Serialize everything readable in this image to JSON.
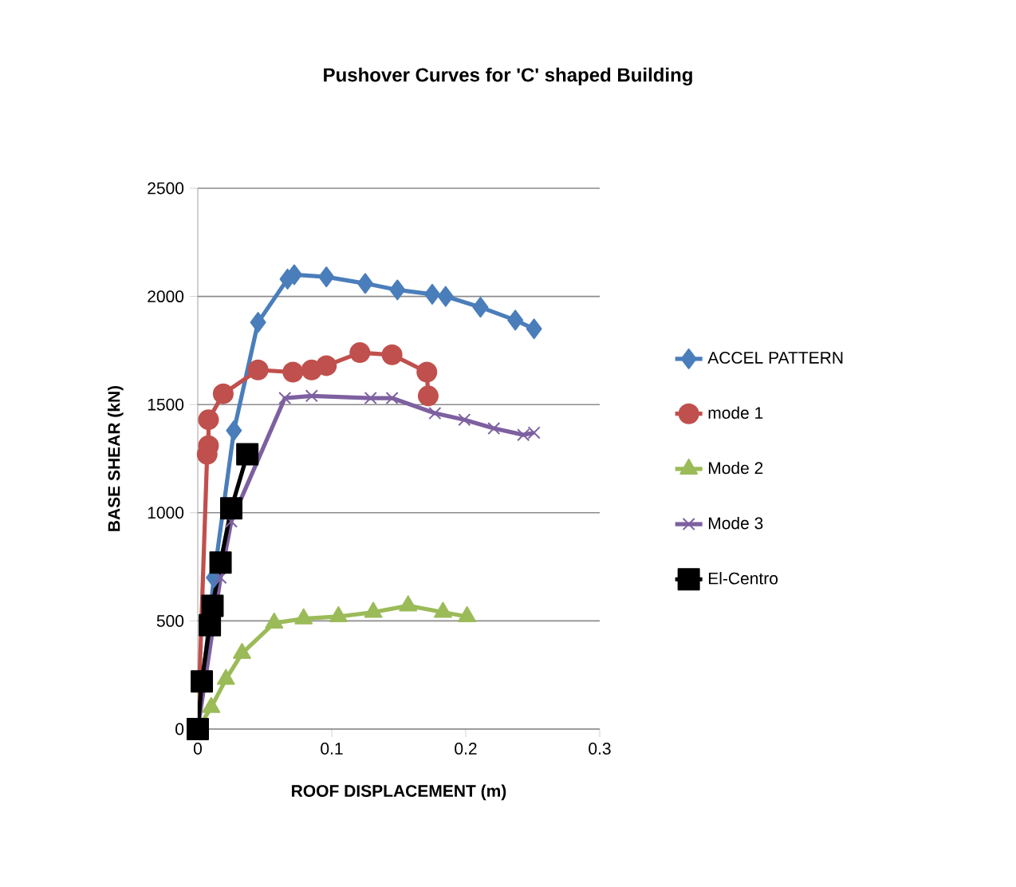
{
  "chart_data": {
    "type": "line",
    "title": "Pushover Curves for 'C' shaped Building",
    "xlabel": "ROOF DISPLACEMENT (m)",
    "ylabel": "BASE SHEAR (kN)",
    "xlim": [
      0,
      0.3
    ],
    "xticks": [
      0,
      0.1,
      0.2,
      0.3
    ],
    "ylim": [
      0,
      2500
    ],
    "yticks": [
      0,
      500,
      1000,
      1500,
      2000,
      2500
    ],
    "grid": "y",
    "legend": "right",
    "series": [
      {
        "name": "ACCEL PATTERN",
        "color": "#4a7ebb",
        "marker": "diamond",
        "x": [
          0,
          0.012,
          0.027,
          0.045,
          0.067,
          0.072,
          0.096,
          0.125,
          0.149,
          0.175,
          0.185,
          0.211,
          0.237,
          0.251
        ],
        "values": [
          0,
          700,
          1380,
          1880,
          2080,
          2100,
          2090,
          2060,
          2030,
          2010,
          2000,
          1950,
          1890,
          1850
        ]
      },
      {
        "name": "mode 1",
        "color": "#c0504d",
        "marker": "circle",
        "x": [
          0,
          0.007,
          0.008,
          0.008,
          0.019,
          0.045,
          0.071,
          0.085,
          0.096,
          0.121,
          0.145,
          0.171,
          0.172
        ],
        "values": [
          0,
          1270,
          1310,
          1430,
          1550,
          1660,
          1650,
          1660,
          1680,
          1740,
          1730,
          1650,
          1540
        ]
      },
      {
        "name": "Mode 2",
        "color": "#9bbb59",
        "marker": "triangle",
        "x": [
          0,
          0.01,
          0.021,
          0.033,
          0.057,
          0.079,
          0.105,
          0.131,
          0.157,
          0.183,
          0.201
        ],
        "values": [
          0,
          100,
          230,
          350,
          490,
          510,
          520,
          540,
          570,
          540,
          520
        ]
      },
      {
        "name": "Mode 3",
        "color": "#7d60a0",
        "marker": "cross",
        "x": [
          0,
          0.017,
          0.025,
          0.065,
          0.085,
          0.129,
          0.145,
          0.177,
          0.199,
          0.221,
          0.243,
          0.251
        ],
        "values": [
          0,
          700,
          960,
          1530,
          1540,
          1530,
          1530,
          1460,
          1430,
          1390,
          1360,
          1370
        ]
      },
      {
        "name": "El-Centro",
        "color": "#000000",
        "marker": "square",
        "x": [
          0,
          0.003,
          0.009,
          0.011,
          0.017,
          0.025,
          0.037
        ],
        "values": [
          0,
          220,
          480,
          570,
          770,
          1020,
          1270
        ]
      }
    ]
  }
}
